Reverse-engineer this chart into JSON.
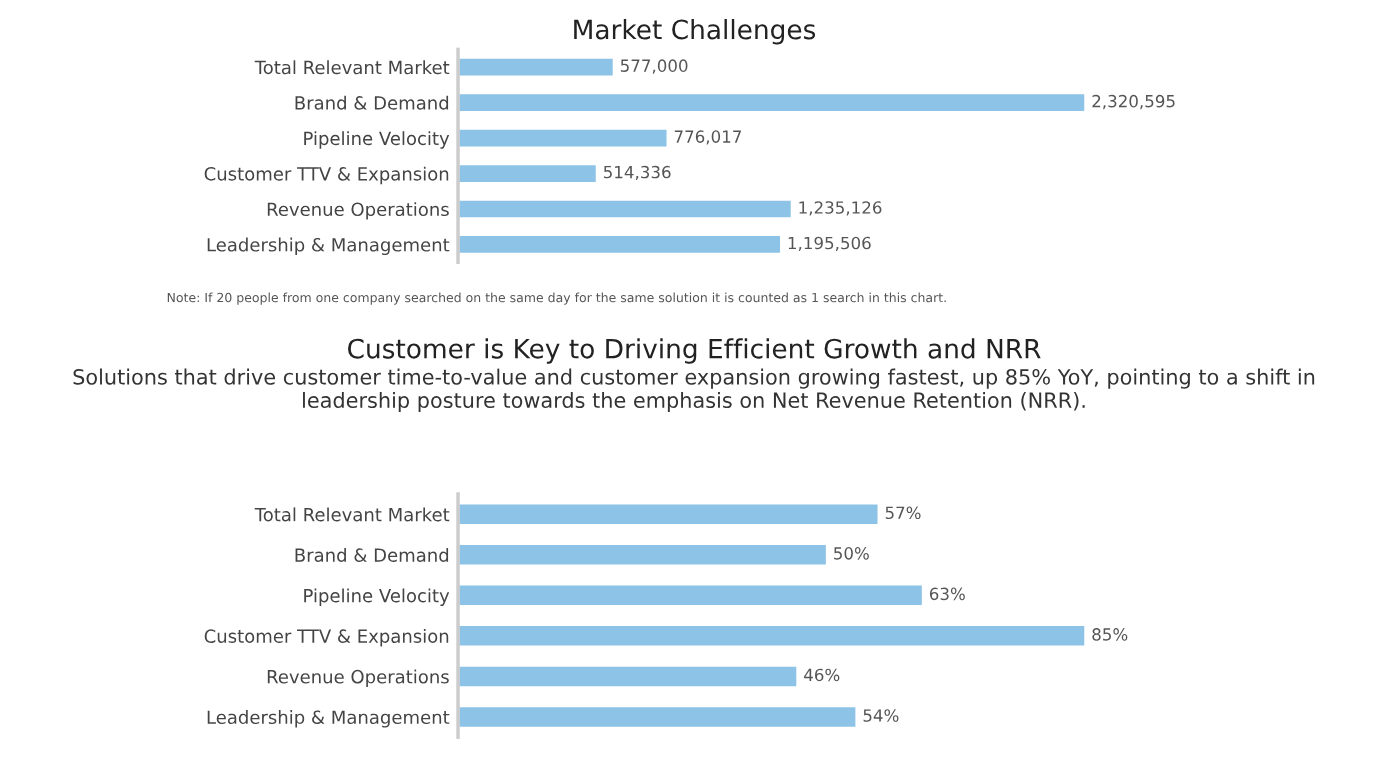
{
  "chart_data": [
    {
      "type": "bar",
      "orientation": "horizontal",
      "title": "Market Challenges",
      "categories": [
        "Total Relevant Market",
        "Brand & Demand",
        "Pipeline Velocity",
        "Customer TTV & Expansion",
        "Revenue Operations",
        "Leadership & Management"
      ],
      "values": [
        577000,
        2320595,
        776017,
        514336,
        1235126,
        1195506
      ],
      "value_labels": [
        "577,000",
        "2,320,595",
        "776,017",
        "514,336",
        "1,235,126",
        "1,195,506"
      ],
      "color": "#8dc3e6",
      "annotations": [
        "Note: If 20 people from one company searched on the same day for the same solution it is counted as 1 search in this chart."
      ]
    },
    {
      "type": "bar",
      "orientation": "horizontal",
      "title": "Customer is Key to Driving Efficient Growth and NRR",
      "subtitle": "Solutions that drive customer time-to-value and customer expansion growing fastest, up 85% YoY, pointing to a shift in leadership posture towards the emphasis on Net Revenue Retention (NRR).",
      "categories": [
        "Total Relevant Market",
        "Brand & Demand",
        "Pipeline Velocity",
        "Customer TTV & Expansion",
        "Revenue Operations",
        "Leadership & Management"
      ],
      "values": [
        57,
        50,
        63,
        85,
        46,
        54
      ],
      "value_labels": [
        "57%",
        "50%",
        "63%",
        "85%",
        "46%",
        "54%"
      ],
      "color": "#8dc3e6"
    }
  ]
}
